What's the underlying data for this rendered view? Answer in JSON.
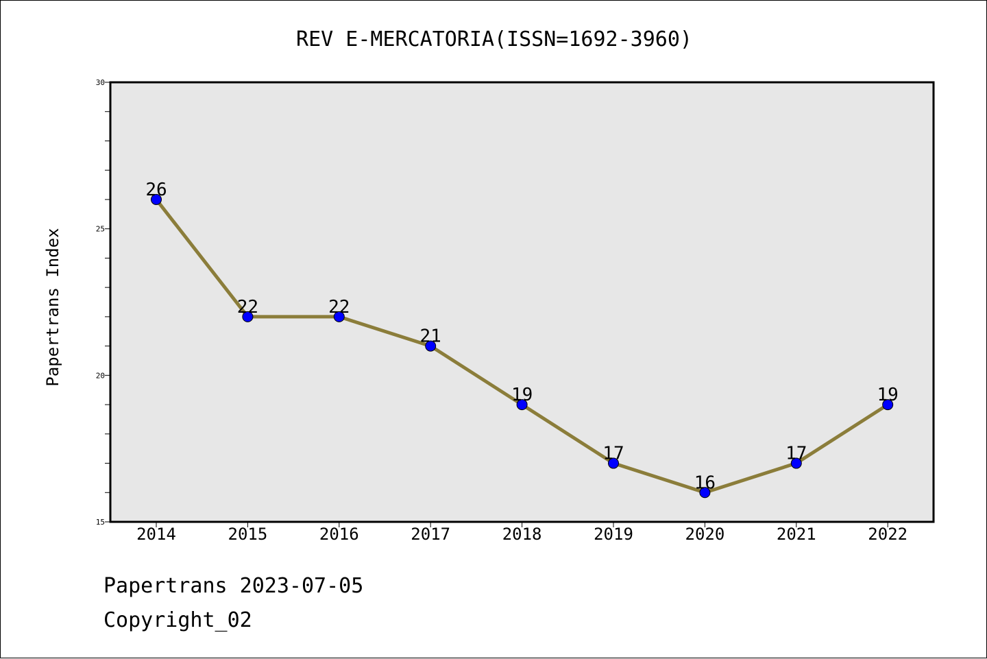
{
  "chart_data": {
    "type": "line",
    "title": "REV E-MERCATORIA(ISSN=1692-3960)",
    "xlabel": "",
    "ylabel": "Papertrans Index",
    "categories": [
      "2014",
      "2015",
      "2016",
      "2017",
      "2018",
      "2019",
      "2020",
      "2021",
      "2022"
    ],
    "series": [
      {
        "values": [
          26,
          22,
          22,
          21,
          19,
          17,
          16,
          17,
          19
        ]
      }
    ],
    "data_labels": [
      "26",
      "22",
      "22",
      "21",
      "19",
      "17",
      "16",
      "17",
      "19"
    ],
    "ylim": [
      15,
      30
    ],
    "yticks": [
      "15",
      "20",
      "25",
      "30"
    ],
    "grid": false,
    "line_color": "#8b7d3a",
    "marker_color": "#0000ff",
    "plot_background": "#e7e7e7"
  },
  "footer": {
    "line1": "Papertrans 2023-07-05",
    "line2": "Copyright_02"
  }
}
